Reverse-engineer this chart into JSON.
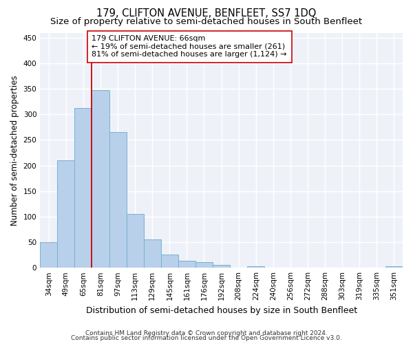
{
  "title": "179, CLIFTON AVENUE, BENFLEET, SS7 1DQ",
  "subtitle": "Size of property relative to semi-detached houses in South Benfleet",
  "xlabel": "Distribution of semi-detached houses by size in South Benfleet",
  "ylabel": "Number of semi-detached properties",
  "categories": [
    "34sqm",
    "49sqm",
    "65sqm",
    "81sqm",
    "97sqm",
    "113sqm",
    "129sqm",
    "145sqm",
    "161sqm",
    "176sqm",
    "192sqm",
    "208sqm",
    "224sqm",
    "240sqm",
    "256sqm",
    "272sqm",
    "288sqm",
    "303sqm",
    "319sqm",
    "335sqm",
    "351sqm"
  ],
  "values": [
    50,
    210,
    312,
    348,
    265,
    105,
    55,
    26,
    14,
    11,
    5,
    0,
    3,
    0,
    0,
    0,
    0,
    0,
    0,
    0,
    3
  ],
  "bar_color": "#b8d0ea",
  "bar_edge_color": "#7aafd4",
  "vline_position": 2.5,
  "vline_color": "#cc0000",
  "annotation_text": "179 CLIFTON AVENUE: 66sqm\n← 19% of semi-detached houses are smaller (261)\n81% of semi-detached houses are larger (1,124) →",
  "annotation_box_facecolor": "#ffffff",
  "annotation_box_edgecolor": "#cc0000",
  "ylim": [
    0,
    460
  ],
  "yticks": [
    0,
    50,
    100,
    150,
    200,
    250,
    300,
    350,
    400,
    450
  ],
  "footer_line1": "Contains HM Land Registry data © Crown copyright and database right 2024.",
  "footer_line2": "Contains public sector information licensed under the Open Government Licence v3.0.",
  "plot_bg_color": "#eef2f8",
  "fig_bg_color": "#ffffff",
  "grid_color": "#ffffff",
  "title_fontsize": 10.5,
  "subtitle_fontsize": 9.5,
  "ylabel_fontsize": 8.5,
  "xlabel_fontsize": 9,
  "tick_fontsize": 7.5,
  "annotation_fontsize": 8,
  "footer_fontsize": 6.5
}
